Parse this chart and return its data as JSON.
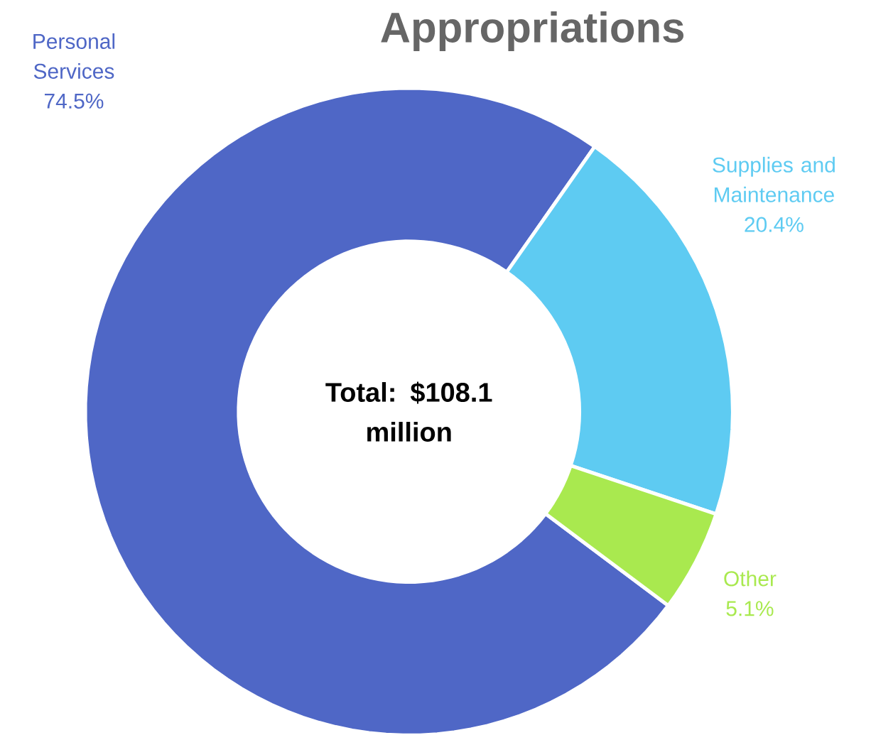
{
  "chart_data": {
    "type": "donut",
    "title": "Appropriations",
    "categories": [
      "Personal Services",
      "Supplies and Maintenance",
      "Other"
    ],
    "values": [
      74.5,
      20.4,
      5.1
    ],
    "value_labels": [
      "74.5%",
      "20.4%",
      "5.1%"
    ],
    "colors": [
      "#4f67c6",
      "#5ecbf2",
      "#a9e94f"
    ],
    "annotations": [
      "Total: $108.1 million"
    ]
  }
}
